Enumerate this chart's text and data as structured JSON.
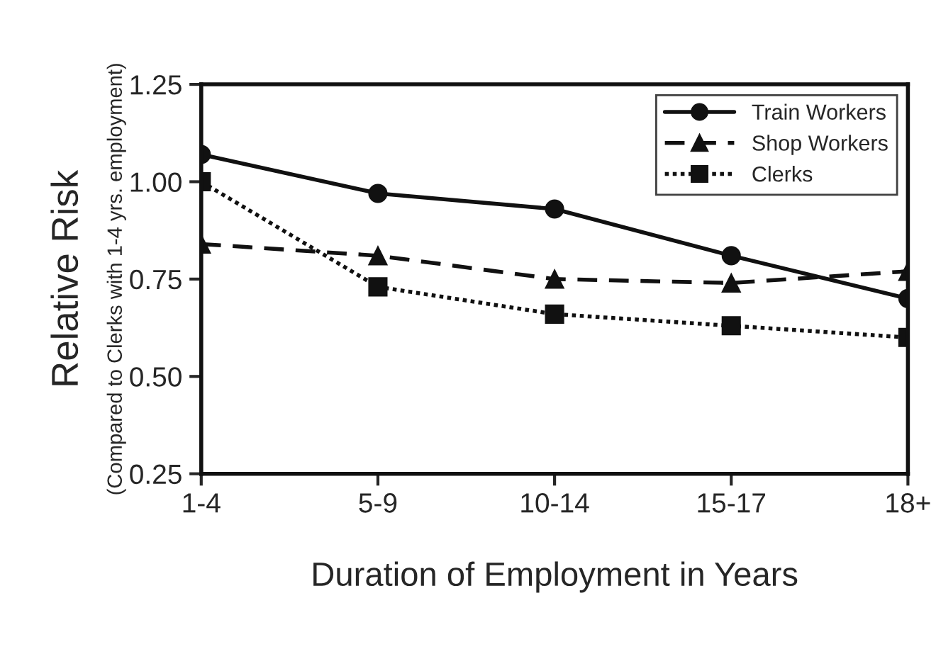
{
  "chart_data": {
    "type": "line",
    "xlabel": "Duration of Employment in Years",
    "ylabel": "Relative Risk",
    "annotations": [
      "(Compared to Clerks with 1-4 yrs. employment)"
    ],
    "categories": [
      "1-4",
      "5-9",
      "10-14",
      "15-17",
      "18+"
    ],
    "series": [
      {
        "name": "Train Workers",
        "color": "#111111",
        "values": [
          1.07,
          0.97,
          0.93,
          0.81,
          0.7
        ],
        "marker": "circle",
        "line_style": "solid"
      },
      {
        "name": "Shop Workers",
        "color": "#111111",
        "values": [
          0.84,
          0.81,
          0.75,
          0.74,
          0.77
        ],
        "marker": "triangle",
        "line_style": "dashed"
      },
      {
        "name": "Clerks",
        "color": "#111111",
        "values": [
          1.0,
          0.73,
          0.66,
          0.63,
          0.6
        ],
        "marker": "square",
        "line_style": "dotted"
      }
    ],
    "ylim": [
      0.25,
      1.25
    ],
    "yticks": [
      0.25,
      {
        "value": 0.5,
        "label": "0.50"
      },
      0.75,
      {
        "value": 1.0,
        "label": "1.00"
      },
      1.25
    ],
    "grid": false,
    "legend": "top right"
  }
}
